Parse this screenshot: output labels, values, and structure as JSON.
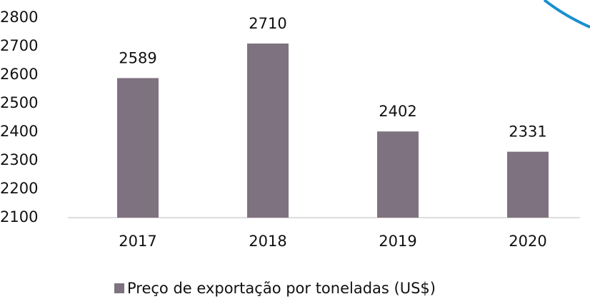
{
  "chart_data": {
    "type": "bar",
    "categories": [
      "2017",
      "2018",
      "2019",
      "2020"
    ],
    "series": [
      {
        "name": "Preço de exportação por toneladas (US$)",
        "color": "#7f7280",
        "values": [
          2589,
          2710,
          2402,
          2331
        ]
      }
    ],
    "ylim": [
      2100,
      2800
    ],
    "yticks": [
      2100,
      2200,
      2300,
      2400,
      2500,
      2600,
      2700,
      2800
    ],
    "grid": false,
    "legend": "bottom"
  }
}
